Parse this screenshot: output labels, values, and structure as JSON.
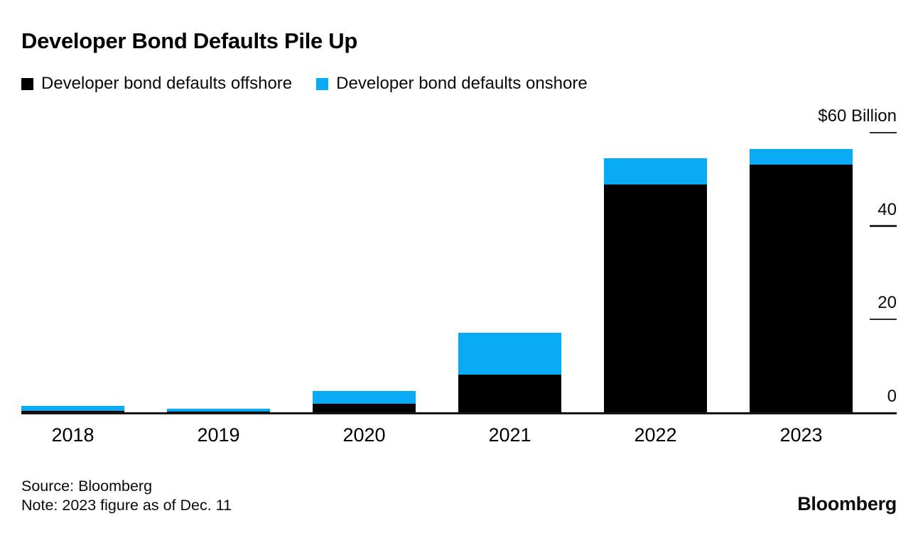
{
  "header": {
    "title": "Developer Bond Defaults Pile Up"
  },
  "chart_data": {
    "type": "bar",
    "stacked": true,
    "title": "Developer Bond Defaults Pile Up",
    "categories": [
      "2018",
      "2019",
      "2020",
      "2021",
      "2022",
      "2023"
    ],
    "series": [
      {
        "name": "Developer bond defaults offshore",
        "color": "#000000",
        "values": [
          0.3,
          0.1,
          1.9,
          8.0,
          48.7,
          53.0
        ]
      },
      {
        "name": "Developer bond defaults onshore",
        "color": "#0aabf5",
        "values": [
          1.1,
          0.7,
          2.6,
          9.0,
          5.7,
          3.3
        ]
      }
    ],
    "y_axis": {
      "unit_label": "$60 Billion",
      "max": 60,
      "ticks": [
        {
          "label": "$60 Billion",
          "value": 60
        },
        {
          "label": "40",
          "value": 40
        },
        {
          "label": "20",
          "value": 20
        },
        {
          "label": "0",
          "value": 0
        }
      ]
    },
    "legend_position": "top",
    "grid": false,
    "axis_color": "#161616"
  },
  "footer": {
    "source": "Source: Bloomberg",
    "note": "Note: 2023 figure as of Dec. 11",
    "logo": "Bloomberg"
  }
}
